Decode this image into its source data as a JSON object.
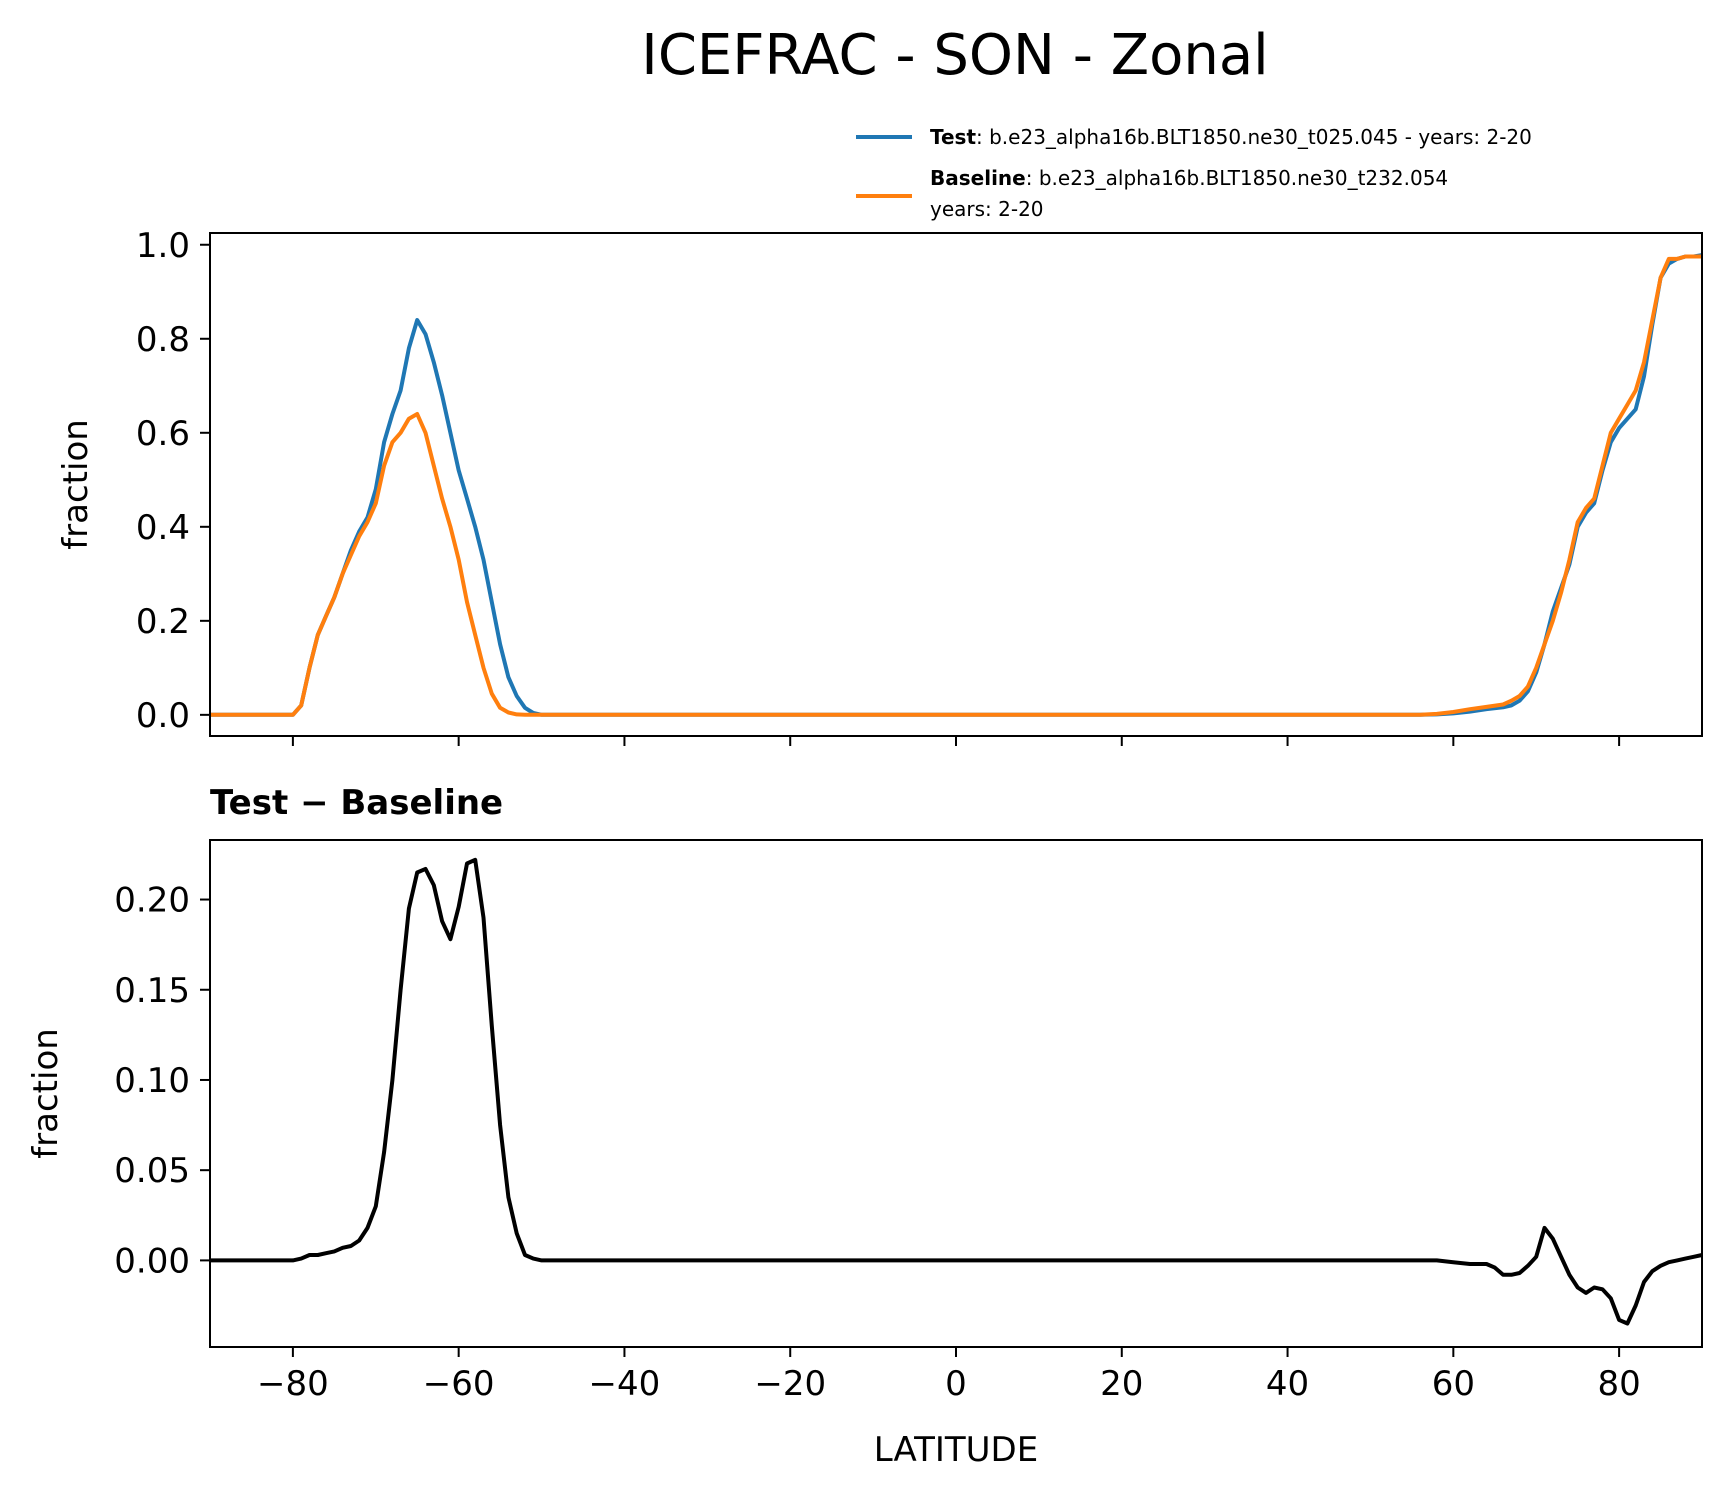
{
  "title": "ICEFRAC - SON - Zonal",
  "colors": {
    "test": "#1f77b4",
    "baseline": "#ff7f0e",
    "diff": "#000000"
  },
  "legend": {
    "test": {
      "name": "Test",
      "text": ": b.e23_alpha16b.BLT1850.ne30_t025.045 - years: 2-20"
    },
    "baseline": {
      "name": "Baseline",
      "text": ": b.e23_alpha16b.BLT1850.ne30_t232.054",
      "text2": "years: 2-20"
    }
  },
  "chart_data": [
    {
      "type": "line",
      "panel": "top",
      "title": "ICEFRAC - SON - Zonal",
      "xlabel": "",
      "ylabel": "fraction",
      "xlim": [
        -90,
        90
      ],
      "ylim": [
        -0.045,
        1.025
      ],
      "yticks": [
        0.0,
        0.2,
        0.4,
        0.6,
        0.8,
        1.0
      ],
      "ytick_labels": [
        "0.0",
        "0.2",
        "0.4",
        "0.6",
        "0.8",
        "1.0"
      ],
      "xticks": [
        -80,
        -60,
        -40,
        -20,
        0,
        20,
        40,
        60,
        80
      ],
      "series": [
        {
          "name": "Test",
          "x": [
            -90,
            -80,
            -79,
            -78,
            -77,
            -76,
            -75,
            -74,
            -73,
            -72,
            -71,
            -70,
            -69,
            -68,
            -67,
            -66,
            -65,
            -64,
            -63,
            -62,
            -61,
            -60,
            -59,
            -58,
            -57,
            -56,
            -55,
            -54,
            -53,
            -52,
            -51,
            -50,
            50,
            56,
            58,
            60,
            62,
            64,
            66,
            67,
            68,
            69,
            70,
            71,
            72,
            73,
            74,
            75,
            76,
            77,
            78,
            79,
            80,
            81,
            82,
            83,
            84,
            85,
            86,
            87,
            88,
            89,
            90
          ],
          "values": [
            0,
            0,
            0.02,
            0.1,
            0.17,
            0.21,
            0.25,
            0.3,
            0.35,
            0.39,
            0.42,
            0.48,
            0.58,
            0.64,
            0.69,
            0.78,
            0.84,
            0.81,
            0.75,
            0.68,
            0.6,
            0.52,
            0.46,
            0.4,
            0.33,
            0.24,
            0.15,
            0.08,
            0.04,
            0.015,
            0.004,
            0,
            0,
            0,
            0.001,
            0.003,
            0.007,
            0.012,
            0.016,
            0.02,
            0.03,
            0.05,
            0.09,
            0.15,
            0.22,
            0.27,
            0.32,
            0.4,
            0.43,
            0.45,
            0.52,
            0.58,
            0.61,
            0.63,
            0.65,
            0.72,
            0.83,
            0.93,
            0.96,
            0.97,
            0.975,
            0.975,
            0.978
          ]
        },
        {
          "name": "Baseline",
          "x": [
            -90,
            -80,
            -79,
            -78,
            -77,
            -76,
            -75,
            -74,
            -73,
            -72,
            -71,
            -70,
            -69,
            -68,
            -67,
            -66,
            -65,
            -64,
            -63,
            -62,
            -61,
            -60,
            -59,
            -58,
            -57,
            -56,
            -55,
            -54,
            -53,
            -52,
            -51,
            -50,
            50,
            56,
            58,
            60,
            62,
            64,
            66,
            67,
            68,
            69,
            70,
            71,
            72,
            73,
            74,
            75,
            76,
            77,
            78,
            79,
            80,
            81,
            82,
            83,
            84,
            85,
            86,
            87,
            88,
            89,
            90
          ],
          "values": [
            0,
            0,
            0.02,
            0.1,
            0.17,
            0.21,
            0.25,
            0.3,
            0.34,
            0.38,
            0.41,
            0.45,
            0.53,
            0.58,
            0.6,
            0.63,
            0.64,
            0.6,
            0.53,
            0.46,
            0.4,
            0.33,
            0.24,
            0.17,
            0.1,
            0.045,
            0.015,
            0.005,
            0.001,
            0,
            0,
            0,
            0,
            0,
            0.002,
            0.006,
            0.012,
            0.017,
            0.022,
            0.03,
            0.04,
            0.06,
            0.1,
            0.15,
            0.2,
            0.26,
            0.33,
            0.41,
            0.44,
            0.46,
            0.53,
            0.6,
            0.63,
            0.66,
            0.69,
            0.75,
            0.84,
            0.93,
            0.97,
            0.97,
            0.975,
            0.975,
            0.975
          ]
        }
      ],
      "legend_position": "above-top-right"
    },
    {
      "type": "line",
      "panel": "bottom",
      "title": "Test − Baseline",
      "xlabel": "LATITUDE",
      "ylabel": "fraction",
      "xlim": [
        -90,
        90
      ],
      "ylim": [
        -0.048,
        0.233
      ],
      "yticks": [
        0.0,
        0.05,
        0.1,
        0.15,
        0.2
      ],
      "ytick_labels": [
        "0.00",
        "0.05",
        "0.10",
        "0.15",
        "0.20"
      ],
      "xticks": [
        -80,
        -60,
        -40,
        -20,
        0,
        20,
        40,
        60,
        80
      ],
      "xtick_labels": [
        "−80",
        "−60",
        "−40",
        "−20",
        "0",
        "20",
        "40",
        "60",
        "80"
      ],
      "series": [
        {
          "name": "Test − Baseline",
          "x": [
            -90,
            -80,
            -79,
            -78,
            -77,
            -76,
            -75,
            -74,
            -73,
            -72,
            -71,
            -70,
            -69,
            -68,
            -67,
            -66,
            -65,
            -64,
            -63,
            -62,
            -61,
            -60,
            -59,
            -58,
            -57,
            -56,
            -55,
            -54,
            -53,
            -52,
            -51,
            -50,
            56,
            58,
            60,
            62,
            64,
            65,
            66,
            67,
            68,
            69,
            70,
            71,
            72,
            73,
            74,
            75,
            76,
            77,
            78,
            79,
            80,
            81,
            82,
            83,
            84,
            85,
            86,
            87,
            88,
            89,
            90
          ],
          "values": [
            0,
            0,
            0.001,
            0.003,
            0.003,
            0.004,
            0.005,
            0.007,
            0.008,
            0.011,
            0.018,
            0.03,
            0.06,
            0.1,
            0.15,
            0.195,
            0.215,
            0.217,
            0.208,
            0.188,
            0.178,
            0.196,
            0.22,
            0.222,
            0.19,
            0.13,
            0.075,
            0.035,
            0.015,
            0.003,
            0.001,
            0,
            0,
            0,
            -0.001,
            -0.002,
            -0.002,
            -0.004,
            -0.008,
            -0.008,
            -0.007,
            -0.003,
            0.002,
            0.018,
            0.012,
            0.002,
            -0.008,
            -0.015,
            -0.018,
            -0.015,
            -0.016,
            -0.021,
            -0.033,
            -0.035,
            -0.025,
            -0.012,
            -0.006,
            -0.003,
            -0.001,
            0,
            0.001,
            0.002,
            0.003
          ]
        }
      ]
    }
  ]
}
